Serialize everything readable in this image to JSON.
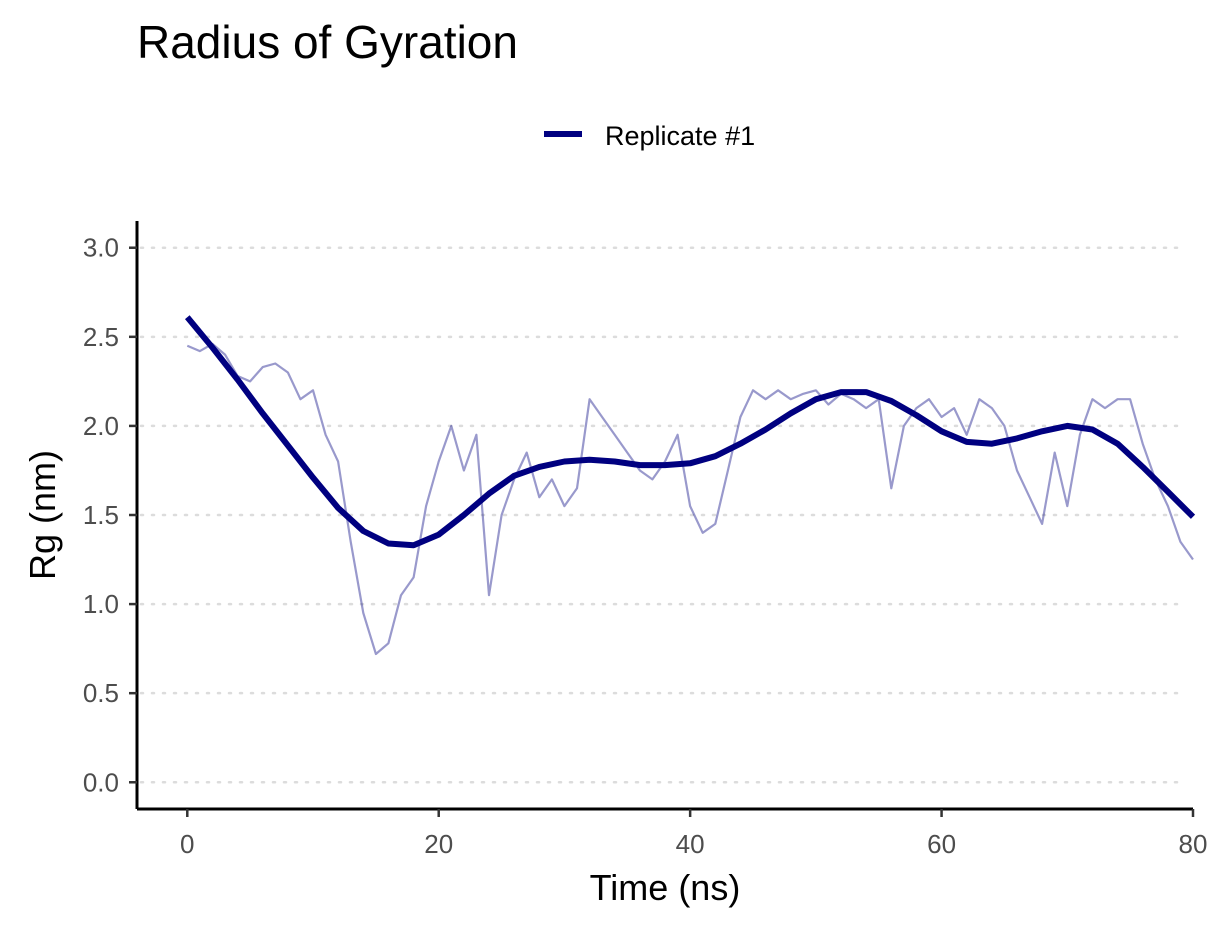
{
  "chart_data": {
    "type": "line",
    "title": "Radius of Gyration",
    "xlabel": "Time (ns)",
    "ylabel": "Rg (nm)",
    "xlim": [
      -4,
      80
    ],
    "ylim": [
      -0.15,
      3.15
    ],
    "x_ticks": [
      0,
      20,
      40,
      60,
      80
    ],
    "x_tick_labels": [
      "0",
      "20",
      "40",
      "60",
      "80"
    ],
    "y_ticks": [
      0.0,
      0.5,
      1.0,
      1.5,
      2.0,
      2.5,
      3.0
    ],
    "y_tick_labels": [
      "0.0",
      "0.5",
      "1.0",
      "1.5",
      "2.0",
      "2.5",
      "3.0"
    ],
    "grid": "horizontal dotted",
    "legend": {
      "position": "top",
      "entries": [
        "Replicate #1"
      ]
    },
    "colors": {
      "series": "#000080",
      "raw_opacity": 0.4
    },
    "series": [
      {
        "name": "Replicate #1",
        "style": "raw",
        "x": [
          0,
          1,
          2,
          3,
          4,
          5,
          6,
          7,
          8,
          9,
          10,
          11,
          12,
          13,
          14,
          15,
          16,
          17,
          18,
          19,
          20,
          21,
          22,
          23,
          24,
          25,
          26,
          27,
          28,
          29,
          30,
          31,
          32,
          33,
          34,
          35,
          36,
          37,
          38,
          39,
          40,
          41,
          42,
          43,
          44,
          45,
          46,
          47,
          48,
          49,
          50,
          51,
          52,
          53,
          54,
          55,
          56,
          57,
          58,
          59,
          60,
          61,
          62,
          63,
          64,
          65,
          66,
          67,
          68,
          69,
          70,
          71,
          72,
          73,
          74,
          75,
          76,
          77,
          78,
          79,
          80
        ],
        "y": [
          2.45,
          2.42,
          2.46,
          2.4,
          2.28,
          2.25,
          2.33,
          2.35,
          2.3,
          2.15,
          2.2,
          1.95,
          1.8,
          1.35,
          0.95,
          0.72,
          0.78,
          1.05,
          1.15,
          1.55,
          1.8,
          2.0,
          1.75,
          1.95,
          1.05,
          1.5,
          1.7,
          1.85,
          1.6,
          1.7,
          1.55,
          1.65,
          2.15,
          2.05,
          1.95,
          1.85,
          1.75,
          1.7,
          1.8,
          1.95,
          1.55,
          1.4,
          1.45,
          1.75,
          2.05,
          2.2,
          2.15,
          2.2,
          2.15,
          2.18,
          2.2,
          2.12,
          2.18,
          2.15,
          2.1,
          2.15,
          1.65,
          2.0,
          2.1,
          2.15,
          2.05,
          2.1,
          1.95,
          2.15,
          2.1,
          2.0,
          1.75,
          1.6,
          1.45,
          1.85,
          1.55,
          1.95,
          2.15,
          2.1,
          2.15,
          2.15,
          1.9,
          1.7,
          1.55,
          1.35,
          1.25
        ]
      },
      {
        "name": "Replicate #1",
        "style": "smoothed",
        "x": [
          0,
          2,
          4,
          6,
          8,
          10,
          12,
          14,
          16,
          18,
          20,
          22,
          24,
          26,
          28,
          30,
          32,
          34,
          36,
          38,
          40,
          42,
          44,
          46,
          48,
          50,
          52,
          54,
          56,
          58,
          60,
          62,
          64,
          66,
          68,
          70,
          72,
          74,
          76,
          78,
          80
        ],
        "y": [
          2.61,
          2.44,
          2.26,
          2.07,
          1.89,
          1.71,
          1.54,
          1.41,
          1.34,
          1.33,
          1.39,
          1.5,
          1.62,
          1.72,
          1.77,
          1.8,
          1.81,
          1.8,
          1.78,
          1.78,
          1.79,
          1.83,
          1.9,
          1.98,
          2.07,
          2.15,
          2.19,
          2.19,
          2.14,
          2.06,
          1.97,
          1.91,
          1.9,
          1.93,
          1.97,
          2.0,
          1.98,
          1.9,
          1.77,
          1.63,
          1.49
        ]
      }
    ]
  }
}
